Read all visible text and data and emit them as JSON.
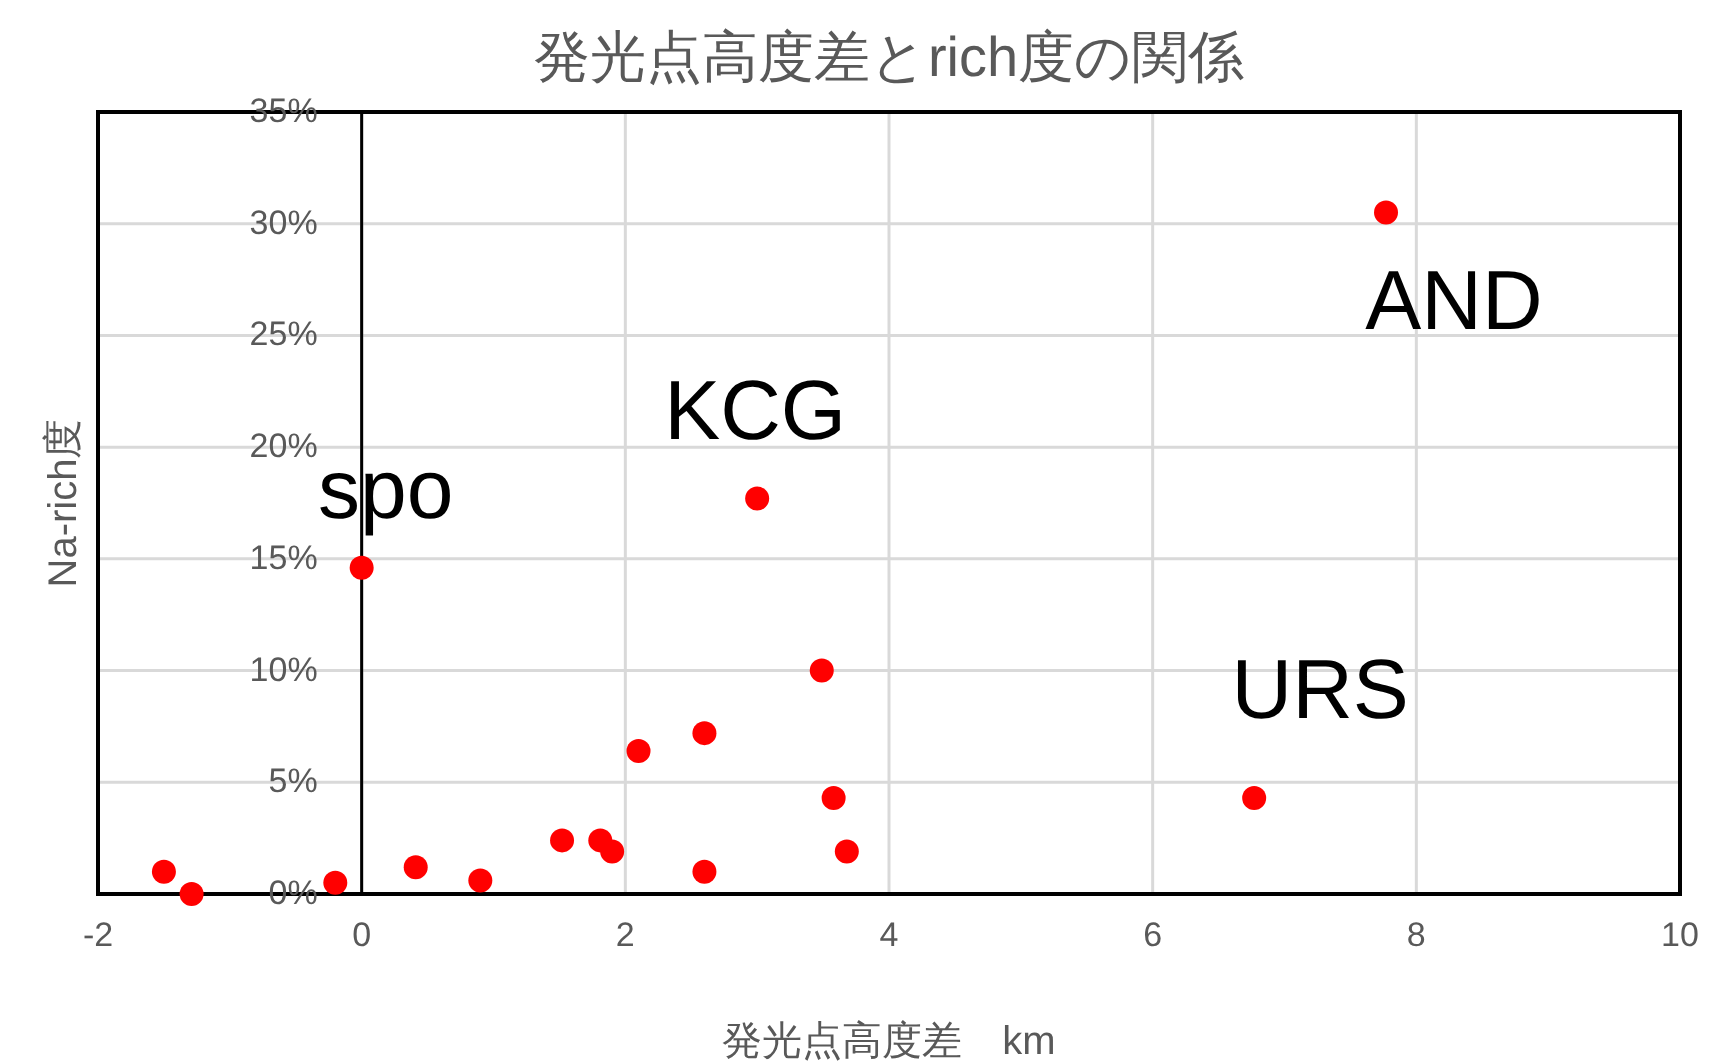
{
  "chart_data": {
    "type": "scatter",
    "title": "発光点高度差とrich度の関係",
    "xlabel": "発光点高度差　km",
    "ylabel": "Na-rich度",
    "x": [
      -1.5,
      -1.29,
      -0.2,
      0,
      0.41,
      0.9,
      1.52,
      1.81,
      1.9,
      2.1,
      2.6,
      2.6,
      3.0,
      3.49,
      3.58,
      3.68,
      6.77,
      7.77
    ],
    "series": [
      {
        "color": "#ff0000",
        "values": [
          1.0,
          0,
          0.5,
          14.6,
          1.2,
          0.6,
          2.4,
          2.4,
          1.9,
          6.4,
          7.2,
          1.0,
          17.7,
          10.0,
          4.3,
          1.9,
          4.3,
          30.5
        ]
      }
    ],
    "marker": "circle",
    "grid": true,
    "xlim": [
      -2,
      10
    ],
    "xticks": [
      -2,
      0,
      2,
      4,
      6,
      8,
      10
    ],
    "ylim": [
      0,
      35
    ],
    "yticks": [
      {
        "value": 0,
        "label": "0%"
      },
      {
        "value": 5,
        "label": "5%"
      },
      {
        "value": 10,
        "label": "10%"
      },
      {
        "value": 15,
        "label": "15%"
      },
      {
        "value": 20,
        "label": "20%"
      },
      {
        "value": 25,
        "label": "25%"
      },
      {
        "value": 30,
        "label": "30%"
      },
      {
        "value": 35,
        "label": "35%"
      }
    ],
    "annotations": [
      {
        "text": "spo",
        "x": 0,
        "y": 14.6
      },
      {
        "text": "KCG",
        "x": 3.0,
        "y": 17.7
      },
      {
        "text": "URS",
        "x": 6.77,
        "y": 4.3
      },
      {
        "text": "AND",
        "x": 7.77,
        "y": 30.5
      }
    ]
  }
}
